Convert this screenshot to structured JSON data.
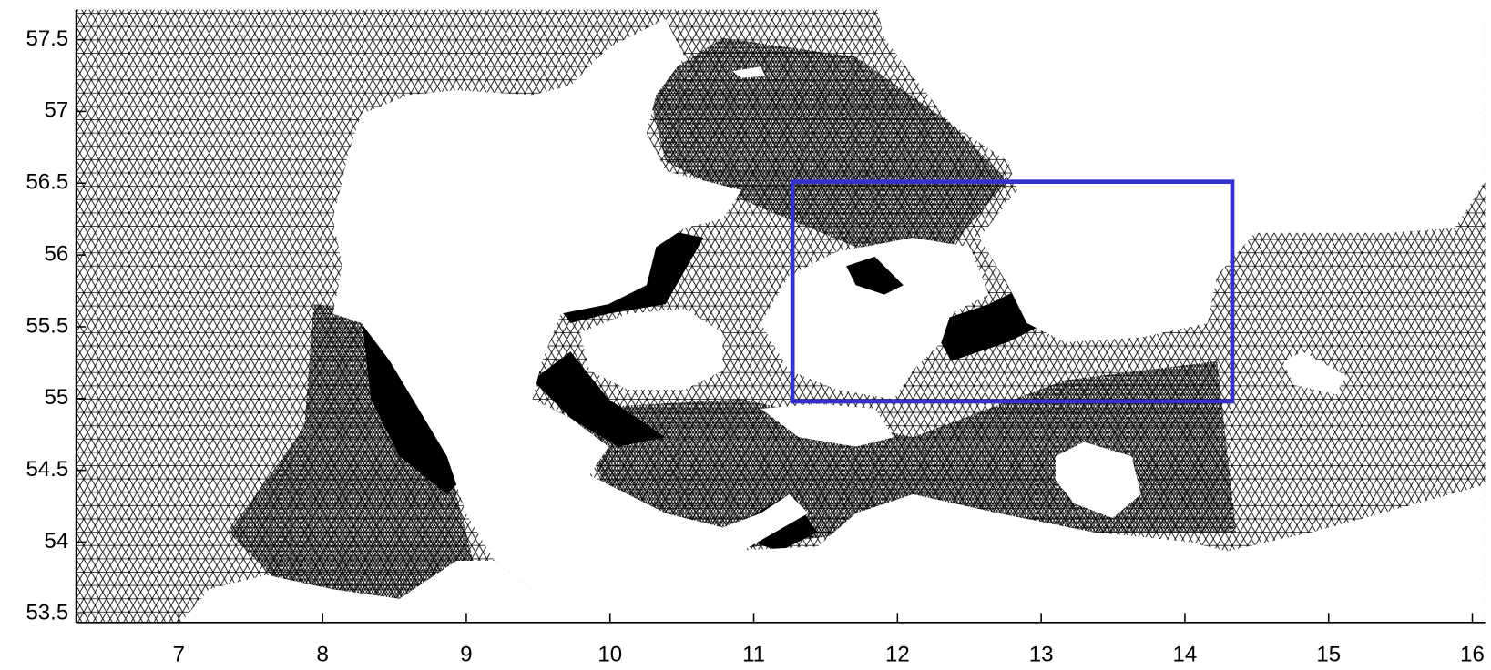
{
  "chart_data": {
    "type": "map",
    "xlim": [
      6.285,
      16.09
    ],
    "ylim": [
      53.44,
      57.71
    ],
    "xticks": [
      7,
      8,
      9,
      10,
      11,
      12,
      13,
      14,
      15,
      16
    ],
    "yticks": [
      53.5,
      54,
      54.5,
      55,
      55.5,
      56,
      56.5,
      57,
      57.5
    ],
    "box": {
      "x": [
        11.27,
        14.33
      ],
      "y": [
        54.98,
        56.51
      ],
      "color": "#3333cc"
    }
  }
}
